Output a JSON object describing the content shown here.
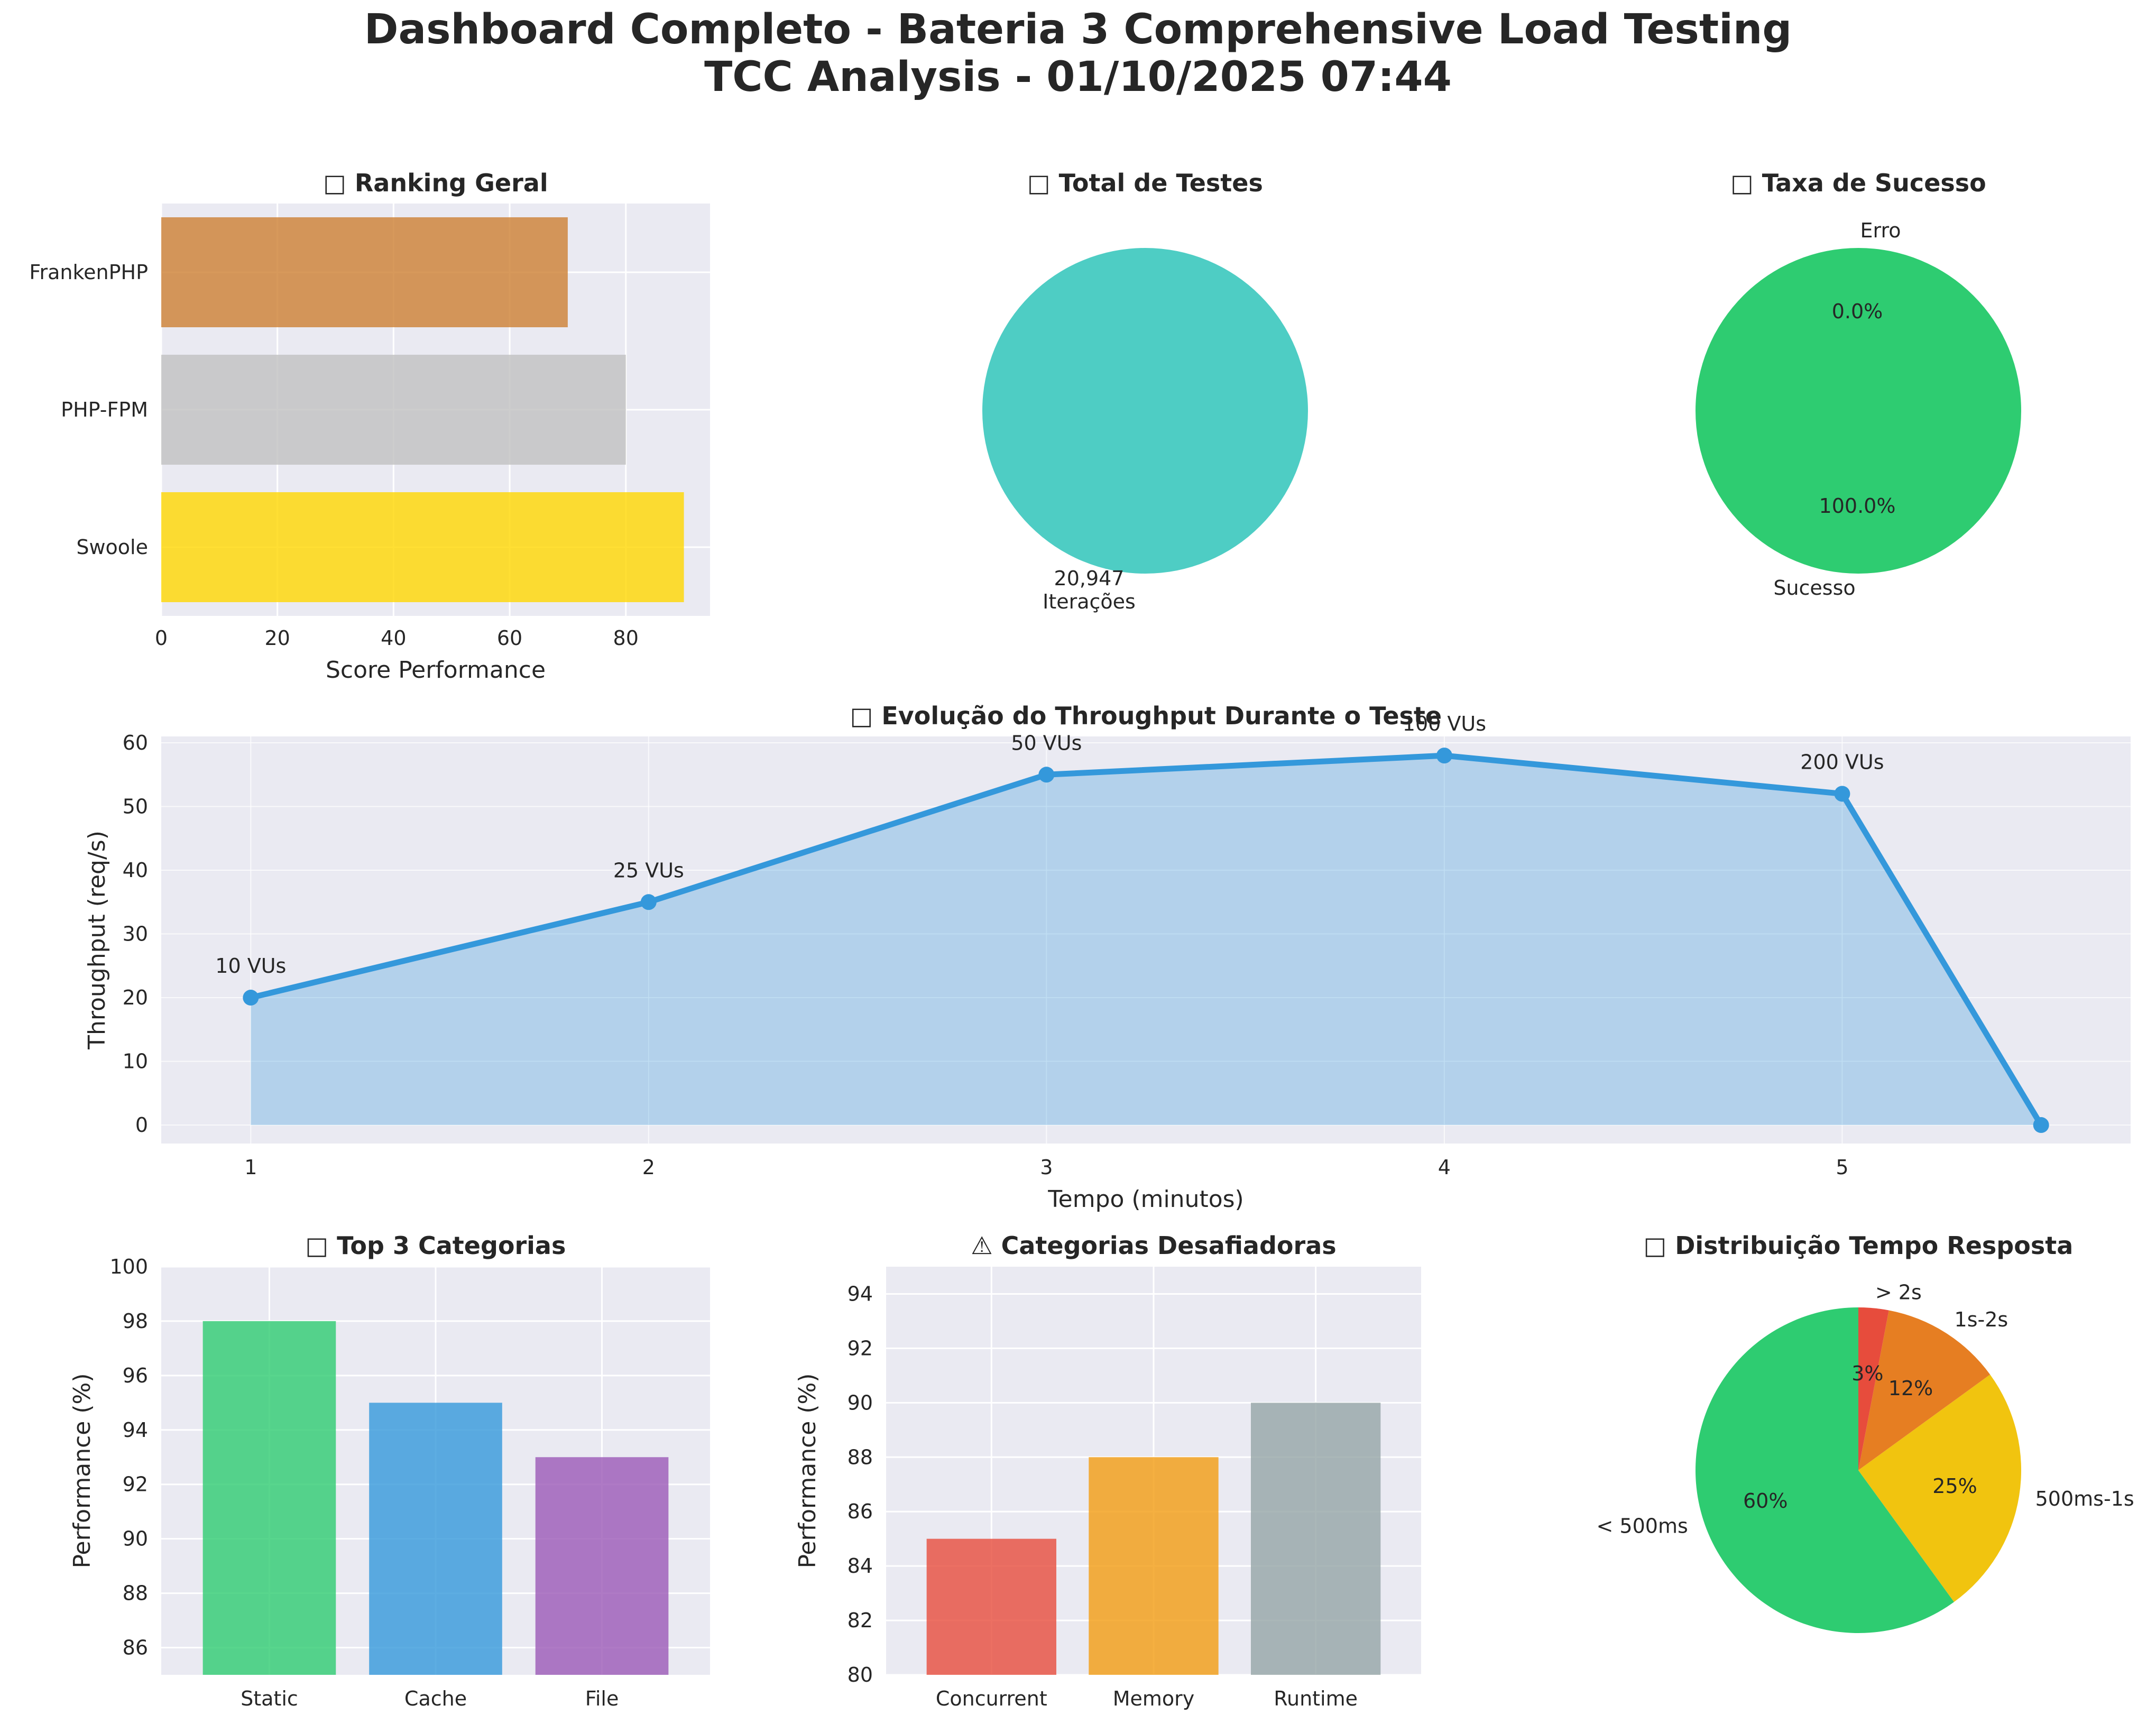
{
  "title_line1": "Dashboard Completo - Bateria 3 Comprehensive Load Testing",
  "title_line2": "TCC Analysis - 01/10/2025 07:44",
  "chart_data": [
    {
      "id": "ranking",
      "type": "bar",
      "orientation": "horizontal",
      "title": "□ Ranking Geral",
      "categories": [
        "Swoole",
        "PHP-FPM",
        "FrankenPHP"
      ],
      "values": [
        90,
        80,
        70
      ],
      "colors": [
        "#FFD700",
        "#C0C0C0",
        "#CD7F32"
      ],
      "xlabel": "Score Performance",
      "ylabel": "",
      "xlim": [
        0,
        94.5
      ],
      "xticks": [
        0,
        20,
        40,
        60,
        80
      ],
      "grid": true
    },
    {
      "id": "total",
      "type": "pie",
      "title": "□ Total de Testes",
      "slices": [
        {
          "label": "20,947\nIterações",
          "value": 20947,
          "color": "#4ECDC4"
        }
      ]
    },
    {
      "id": "sucesso",
      "type": "pie",
      "title": "□ Taxa de Sucesso",
      "slices": [
        {
          "label": "Sucesso",
          "value": 100.0,
          "pct_label": "100.0%",
          "color": "#2ECC71"
        },
        {
          "label": "Erro",
          "value": 0.0,
          "pct_label": "0.0%",
          "color": "#E74C3C"
        }
      ]
    },
    {
      "id": "throughput",
      "type": "area",
      "title": "□ Evolução do Throughput Durante o Teste",
      "xlabel": "Tempo (minutos)",
      "ylabel": "Throughput (req/s)",
      "x": [
        1,
        2,
        3,
        4,
        5,
        5.5
      ],
      "y": [
        20,
        35,
        55,
        58,
        52,
        0
      ],
      "annotations": [
        "10 VUs",
        "25 VUs",
        "50 VUs",
        "100 VUs",
        "200 VUs"
      ],
      "xlim": [
        0.775,
        5.725
      ],
      "ylim": [
        -2.9,
        61
      ],
      "xticks": [
        1,
        2,
        3,
        4,
        5
      ],
      "yticks": [
        0,
        10,
        20,
        30,
        40,
        50,
        60
      ],
      "color": "#3498DB",
      "grid": true
    },
    {
      "id": "top3",
      "type": "bar",
      "title": "□ Top 3 Categorias",
      "categories": [
        "Static",
        "Cache",
        "File"
      ],
      "values": [
        98,
        95,
        93
      ],
      "colors": [
        "#2ECC71",
        "#3498DB",
        "#9B59B6"
      ],
      "ylabel": "Performance (%)",
      "ylim": [
        85,
        100
      ],
      "yticks": [
        86,
        88,
        90,
        92,
        94,
        96,
        98,
        100
      ],
      "grid": true
    },
    {
      "id": "desafio",
      "type": "bar",
      "title": "⚠ Categorias Desafiadoras",
      "categories": [
        "Concurrent",
        "Memory",
        "Runtime"
      ],
      "values": [
        85,
        88,
        90
      ],
      "colors": [
        "#E74C3C",
        "#F39C12",
        "#95A5A6"
      ],
      "ylabel": "Performance (%)",
      "ylim": [
        80,
        95
      ],
      "yticks": [
        80,
        82,
        84,
        86,
        88,
        90,
        92,
        94
      ],
      "grid": true
    },
    {
      "id": "distrib",
      "type": "pie",
      "title": "□ Distribuição Tempo Resposta",
      "slices": [
        {
          "label": "< 500ms",
          "value": 60,
          "pct_label": "60%",
          "color": "#2ECC71"
        },
        {
          "label": "500ms-1s",
          "value": 25,
          "pct_label": "25%",
          "color": "#F1C40F"
        },
        {
          "label": "1s-2s",
          "value": 12,
          "pct_label": "12%",
          "color": "#E67E22"
        },
        {
          "label": "> 2s",
          "value": 3,
          "pct_label": "3%",
          "color": "#E74C3C"
        }
      ]
    }
  ]
}
